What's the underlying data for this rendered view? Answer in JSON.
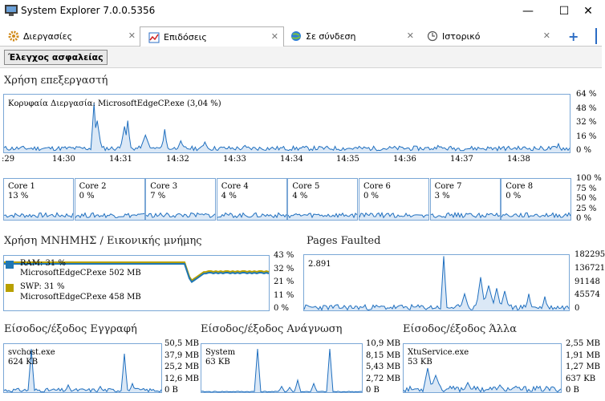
{
  "window": {
    "title": "System Explorer 7.0.0.5356"
  },
  "tabs": [
    {
      "label": "Διεργασίες",
      "icon": "gear-icon"
    },
    {
      "label": "Επιδόσεις",
      "icon": "performance-icon"
    },
    {
      "label": "Σε σύνδεση",
      "icon": "globe-icon"
    },
    {
      "label": "Ιστορικό",
      "icon": "clock-icon"
    }
  ],
  "toolbar": {
    "security_label": "Έλεγχος ασφαλείας"
  },
  "cpu": {
    "title": "Χρήση επεξεργαστή",
    "top_process": "Κορυφαία Διεργασία: MicrosoftEdgeCP.exe (3,04 %)",
    "y_ticks": [
      "64 %",
      "48 %",
      "32 %",
      "16 %",
      "0 %"
    ],
    "x_ticks": [
      ":29",
      "14:30",
      "14:31",
      "14:32",
      "14:33",
      "14:34",
      "14:35",
      "14:36",
      "14:37",
      "14:38"
    ]
  },
  "cores": [
    {
      "name": "Core 1",
      "value": "13 %"
    },
    {
      "name": "Core 2",
      "value": "0 %"
    },
    {
      "name": "Core 3",
      "value": "7 %"
    },
    {
      "name": "Core 4",
      "value": "4 %"
    },
    {
      "name": "Core 5",
      "value": "4 %"
    },
    {
      "name": "Core 6",
      "value": "0 %"
    },
    {
      "name": "Core 7",
      "value": "3 %"
    },
    {
      "name": "Core 8",
      "value": "0 %"
    }
  ],
  "core_ticks": [
    "100 %",
    "75 %",
    "50 %",
    "25 %",
    "0 %"
  ],
  "memory": {
    "title": "Χρήση ΜΝΗΜΗΣ / Εικονικής μνήμης",
    "ram_label": "RAM: 31 %",
    "ram_process": "MicrosoftEdgeCP.exe 502 MB",
    "swp_label": "SWP: 31 %",
    "swp_process": "MicrosoftEdgeCP.exe 458 MB",
    "y_ticks": [
      "43 %",
      "32 %",
      "21 %",
      "11 %",
      "0 %"
    ],
    "ram_color": "#1f77b4",
    "swp_color": "#b8a000"
  },
  "pages": {
    "title": "Pages Faulted",
    "current": "2.891",
    "y_ticks": [
      "182295",
      "136721",
      "91148",
      "45574",
      "0"
    ]
  },
  "io_write": {
    "title": "Είσοδος/έξοδος Εγγραφή",
    "process": "svchost.exe",
    "value": "624 KB",
    "y_ticks": [
      "50,5 MB",
      "37,9 MB",
      "25,2 MB",
      "12,6 MB",
      "0 B"
    ]
  },
  "io_read": {
    "title": "Είσοδος/έξοδος Ανάγνωση",
    "process": "System",
    "value": "63 KB",
    "y_ticks": [
      "10,9 MB",
      "8,15 MB",
      "5,43 MB",
      "2,72 MB",
      "0 B"
    ]
  },
  "io_other": {
    "title": "Είσοδος/έξοδος Άλλα",
    "process": "XtuService.exe",
    "value": "53 KB",
    "y_ticks": [
      "2,55 MB",
      "1,91 MB",
      "1,27 MB",
      "637 KB",
      "0 B"
    ]
  }
}
